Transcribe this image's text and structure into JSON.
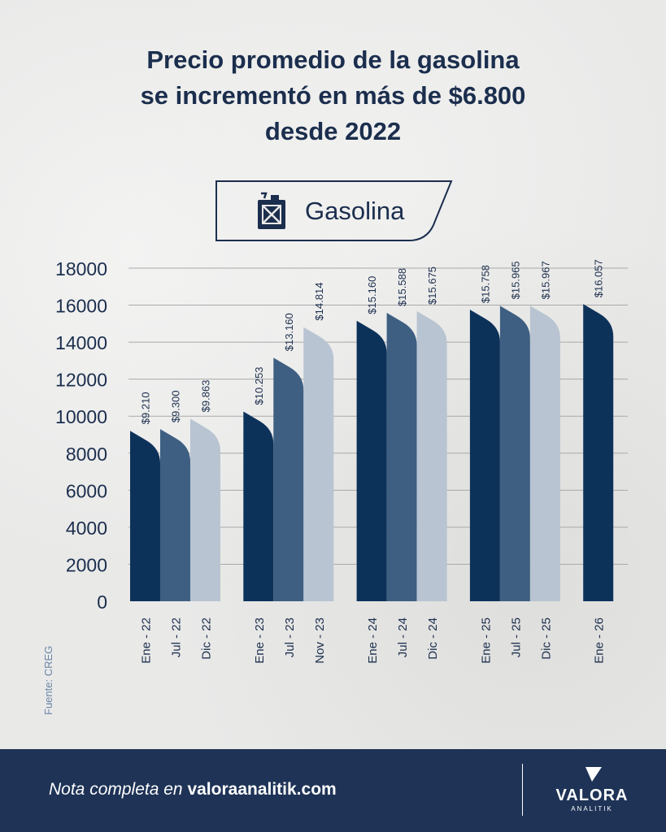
{
  "title_lines": [
    "Precio promedio de la gasolina",
    "se incrementó en más de $6.800",
    "desde 2022"
  ],
  "legend": {
    "label": "Gasolina",
    "icon": "fuel-can-icon"
  },
  "source": "Fuente: CREG",
  "footer": {
    "note_prefix": "Nota completa en",
    "note_site": "valoraanalitik.com",
    "logo_name": "VALORA",
    "logo_sub": "ANALITIK"
  },
  "colors": {
    "dark": "#0d325a",
    "mid": "#3e5f82",
    "light": "#b8c4d1",
    "text": "#1b2e4d",
    "footer": "#1e3356"
  },
  "chart_data": {
    "type": "bar",
    "title": "Precio promedio de la gasolina se incrementó en más de $6.800 desde 2022",
    "ylim": [
      0,
      18000
    ],
    "yticks": [
      0,
      2000,
      4000,
      6000,
      8000,
      10000,
      12000,
      14000,
      16000,
      18000
    ],
    "grid": true,
    "categories": [
      "Ene - 22",
      "Jul - 22",
      "Dic - 22",
      "Ene - 23",
      "Jul - 23",
      "Nov - 23",
      "Ene - 24",
      "Jul - 24",
      "Dic - 24",
      "Ene - 25",
      "Jul - 25",
      "Dic - 25",
      "Ene - 26"
    ],
    "values": [
      9210,
      9300,
      9863,
      10253,
      13160,
      14814,
      15160,
      15588,
      15675,
      15758,
      15965,
      15967,
      16057
    ],
    "data_labels": [
      "$9.210",
      "$9.300",
      "$9.863",
      "$10.253",
      "$13.160",
      "$14.814",
      "$15.160",
      "$15.588",
      "$15.675",
      "$15.758",
      "$15.965",
      "$15.967",
      "$16.057"
    ],
    "shade": [
      "dark",
      "mid",
      "light",
      "dark",
      "mid",
      "light",
      "dark",
      "mid",
      "light",
      "dark",
      "mid",
      "light",
      "dark"
    ]
  }
}
